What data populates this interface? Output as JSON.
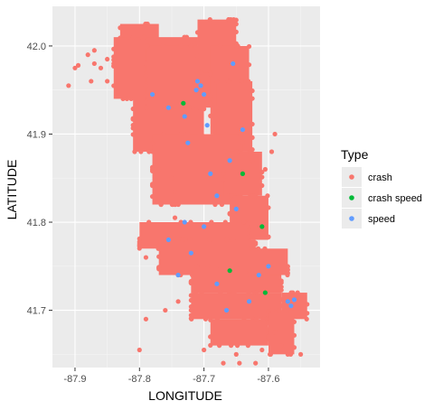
{
  "chart_data": {
    "type": "scatter",
    "title": "",
    "xlabel": "LONGITUDE",
    "ylabel": "LATITUDE",
    "xlim": [
      -87.935,
      -87.52
    ],
    "ylim": [
      41.635,
      42.045
    ],
    "x_ticks": [
      -87.9,
      -87.8,
      -87.7,
      -87.6
    ],
    "x_tick_labels": [
      "-87.9",
      "-87.8",
      "-87.7",
      "-87.6"
    ],
    "y_ticks": [
      41.7,
      41.8,
      41.9,
      42.0
    ],
    "y_tick_labels": [
      "41.7",
      "41.8",
      "41.9",
      "42.0"
    ],
    "grid": true,
    "legend": {
      "title": "Type",
      "placement": "right",
      "entries": [
        {
          "label": "crash",
          "color": "#F8766D"
        },
        {
          "label": "crash speed",
          "color": "#00BA38"
        },
        {
          "label": " speed",
          "color": "#619CFF"
        }
      ]
    },
    "series": [
      {
        "name": "crash",
        "color": "#F8766D",
        "regions": [
          {
            "x": [
              -87.83,
              -87.77
            ],
            "y": [
              42.0,
              42.025
            ]
          },
          {
            "x": [
              -87.84,
              -87.71
            ],
            "y": [
              41.94,
              42.01
            ]
          },
          {
            "x": [
              -87.81,
              -87.7
            ],
            "y": [
              41.88,
              41.945
            ]
          },
          {
            "x": [
              -87.79,
              -87.66
            ],
            "y": [
              41.93,
              42.0
            ]
          },
          {
            "x": [
              -87.7,
              -87.66
            ],
            "y": [
              41.99,
              42.02
            ]
          },
          {
            "x": [
              -87.71,
              -87.65
            ],
            "y": [
              41.97,
              42.03
            ]
          },
          {
            "x": [
              -87.69,
              -87.63
            ],
            "y": [
              41.9,
              42.0
            ]
          },
          {
            "x": [
              -87.68,
              -87.625
            ],
            "y": [
              41.88,
              41.96
            ]
          },
          {
            "x": [
              -87.78,
              -87.64
            ],
            "y": [
              41.82,
              41.9
            ]
          },
          {
            "x": [
              -87.67,
              -87.61
            ],
            "y": [
              41.83,
              41.88
            ]
          },
          {
            "x": [
              -87.66,
              -87.6
            ],
            "y": [
              41.78,
              41.83
            ]
          },
          {
            "x": [
              -87.8,
              -87.63
            ],
            "y": [
              41.77,
              41.8
            ]
          },
          {
            "x": [
              -87.77,
              -87.62
            ],
            "y": [
              41.74,
              41.78
            ]
          },
          {
            "x": [
              -87.72,
              -87.58
            ],
            "y": [
              41.72,
              41.75
            ]
          },
          {
            "x": [
              -87.63,
              -87.57
            ],
            "y": [
              41.74,
              41.77
            ]
          },
          {
            "x": [
              -87.72,
              -87.58
            ],
            "y": [
              41.69,
              41.72
            ]
          },
          {
            "x": [
              -87.69,
              -87.6
            ],
            "y": [
              41.66,
              41.69
            ]
          },
          {
            "x": [
              -87.58,
              -87.54
            ],
            "y": [
              41.69,
              41.72
            ]
          },
          {
            "x": [
              -87.6,
              -87.56
            ],
            "y": [
              41.65,
              41.7
            ]
          }
        ],
        "points": [
          [
            -87.91,
            41.955
          ],
          [
            -87.9,
            41.975
          ],
          [
            -87.895,
            41.978
          ],
          [
            -87.88,
            41.99
          ],
          [
            -87.87,
            41.995
          ],
          [
            -87.87,
            41.98
          ],
          [
            -87.86,
            41.975
          ],
          [
            -87.875,
            41.96
          ],
          [
            -87.85,
            41.96
          ],
          [
            -87.85,
            41.985
          ],
          [
            -87.78,
            41.86
          ],
          [
            -87.77,
            41.86
          ],
          [
            -87.75,
            41.85
          ],
          [
            -87.745,
            41.835
          ],
          [
            -87.745,
            41.82
          ],
          [
            -87.745,
            41.805
          ],
          [
            -87.79,
            41.76
          ],
          [
            -87.79,
            41.69
          ],
          [
            -87.76,
            41.7
          ],
          [
            -87.74,
            41.71
          ],
          [
            -87.72,
            41.7
          ],
          [
            -87.8,
            41.655
          ],
          [
            -87.7,
            41.655
          ],
          [
            -87.67,
            41.64
          ],
          [
            -87.65,
            41.65
          ],
          [
            -87.645,
            41.64
          ],
          [
            -87.62,
            41.64
          ],
          [
            -87.61,
            41.655
          ],
          [
            -87.58,
            41.66
          ],
          [
            -87.57,
            41.65
          ],
          [
            -87.55,
            41.65
          ],
          [
            -87.59,
            41.675
          ],
          [
            -87.6,
            41.67
          ],
          [
            -87.59,
            41.9
          ],
          [
            -87.595,
            41.88
          ],
          [
            -87.605,
            41.86
          ],
          [
            -87.62,
            41.83
          ],
          [
            -87.625,
            41.87
          ]
        ]
      },
      {
        "name": "crash speed",
        "color": "#00BA38",
        "points": [
          [
            -87.732,
            41.935
          ],
          [
            -87.61,
            41.795
          ],
          [
            -87.66,
            41.745
          ],
          [
            -87.605,
            41.72
          ],
          [
            -87.64,
            41.855
          ]
        ]
      },
      {
        "name": " speed",
        "color": "#619CFF",
        "points": [
          [
            -87.71,
            41.96
          ],
          [
            -87.705,
            41.955
          ],
          [
            -87.712,
            41.95
          ],
          [
            -87.7,
            41.945
          ],
          [
            -87.73,
            41.92
          ],
          [
            -87.695,
            41.91
          ],
          [
            -87.725,
            41.89
          ],
          [
            -87.66,
            41.87
          ],
          [
            -87.69,
            41.855
          ],
          [
            -87.68,
            41.83
          ],
          [
            -87.65,
            41.815
          ],
          [
            -87.7,
            41.795
          ],
          [
            -87.73,
            41.8
          ],
          [
            -87.755,
            41.78
          ],
          [
            -87.72,
            41.765
          ],
          [
            -87.74,
            41.74
          ],
          [
            -87.68,
            41.73
          ],
          [
            -87.615,
            41.74
          ],
          [
            -87.6,
            41.75
          ],
          [
            -87.63,
            41.71
          ],
          [
            -87.665,
            41.7
          ],
          [
            -87.57,
            41.71
          ],
          [
            -87.565,
            41.705
          ],
          [
            -87.56,
            41.712
          ],
          [
            -87.78,
            41.945
          ],
          [
            -87.755,
            41.93
          ],
          [
            -87.64,
            41.905
          ],
          [
            -87.655,
            41.98
          ]
        ]
      }
    ]
  }
}
